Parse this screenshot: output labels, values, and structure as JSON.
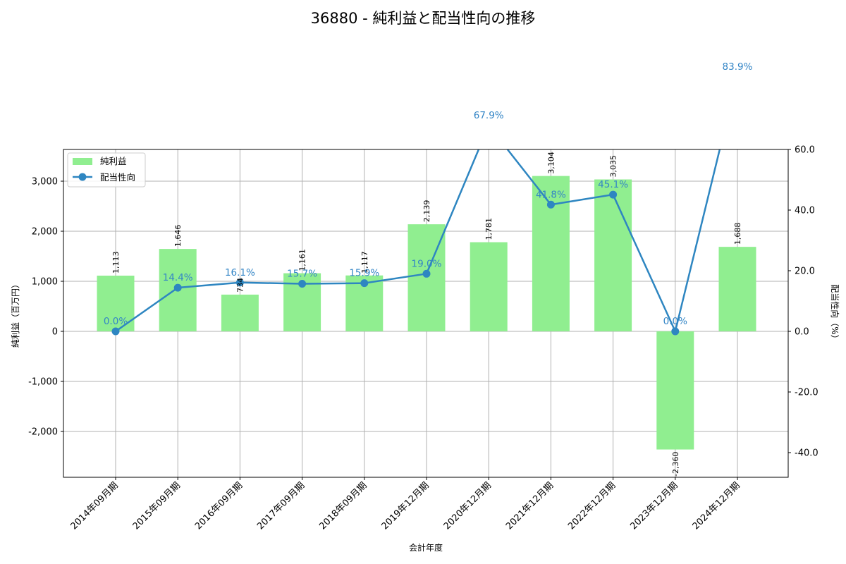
{
  "title": "36880 - 純利益と配当性向の推移",
  "chart_data": {
    "type": "bar+line",
    "title": "36880 - 純利益と配当性向の推移",
    "xlabel": "会計年度",
    "ylabel": "純利益（百万円）",
    "ylabel_right": "配当性向（%）",
    "categories": [
      "2014年09月期",
      "2015年09月期",
      "2016年09月期",
      "2017年09月期",
      "2018年09月期",
      "2019年12月期",
      "2020年12月期",
      "2021年12月期",
      "2022年12月期",
      "2023年12月期",
      "2024年12月期"
    ],
    "series": [
      {
        "name": "純利益",
        "type": "bar",
        "axis": "left",
        "color": "#90ee90",
        "values": [
          1113,
          1646,
          734,
          1161,
          1117,
          2139,
          1781,
          3104,
          3035,
          -2360,
          1688
        ],
        "labels": [
          "1,113",
          "1,646",
          "734",
          "1,161",
          "1,117",
          "2,139",
          "1,781",
          "3,104",
          "3,035",
          "-2,360",
          "1,688"
        ]
      },
      {
        "name": "配当性向",
        "type": "line",
        "axis": "right",
        "color": "#2e86c1",
        "values": [
          0.0,
          14.4,
          16.1,
          15.7,
          15.9,
          19.0,
          67.9,
          41.8,
          45.1,
          0.0,
          83.9
        ],
        "labels": [
          "0.0%",
          "14.4%",
          "16.1%",
          "15.7%",
          "15.9%",
          "19.0%",
          "67.9%",
          "41.8%",
          "45.1%",
          "0.0%",
          "83.9%"
        ]
      }
    ],
    "ylim": [
      -2900,
      3650
    ],
    "ylim_right": [
      -48,
      60
    ],
    "yticks": [
      "-2,000",
      "-1,000",
      "0",
      "1,000",
      "2,000",
      "3,000"
    ],
    "yticks_right": [
      "-40.0",
      "-20.0",
      "0.0",
      "20.0",
      "40.0",
      "60.0"
    ],
    "grid": true,
    "legend_position": "upper left"
  },
  "legend": {
    "bar": "純利益",
    "line": "配当性向"
  }
}
